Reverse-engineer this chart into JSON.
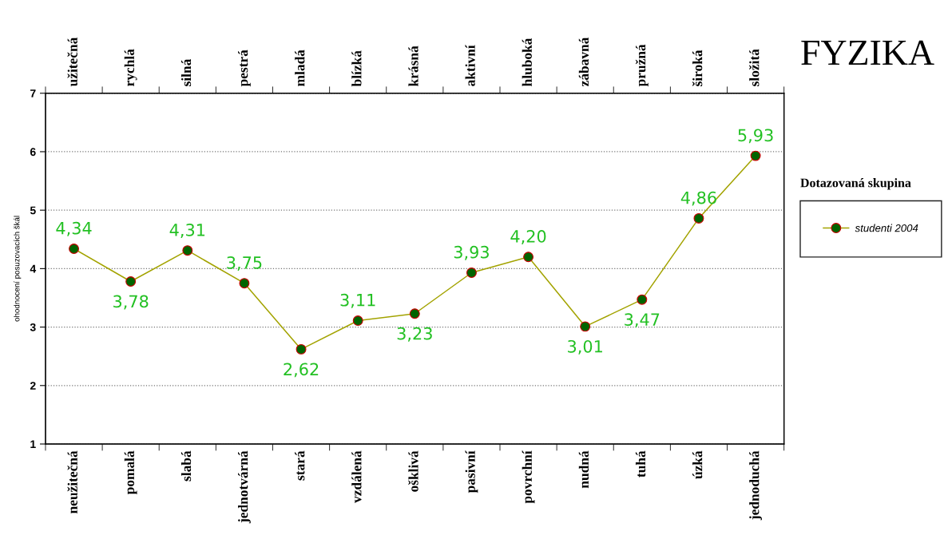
{
  "chart_data": {
    "type": "line",
    "title": "FYZIKA",
    "ylabel": "ohodnocení posuzovacích škál",
    "legend_title": "Dotazovaná skupina",
    "categories": [
      "neužitečná",
      "pomalá",
      "slabá",
      "jednotvárná",
      "stará",
      "vzdálená",
      "ošklivá",
      "pasivní",
      "povrchní",
      "nudná",
      "tuhá",
      "úzká",
      "jednoduchá"
    ],
    "annotations": [
      "užitečná",
      "rychlá",
      "silná",
      "pestrá",
      "mladá",
      "blízká",
      "krásná",
      "aktivní",
      "hluboká",
      "zábavná",
      "pružná",
      "široká",
      "složitá"
    ],
    "series": [
      {
        "name": "studenti 2004",
        "color": "#a3a300",
        "values": [
          4.34,
          3.78,
          4.31,
          3.75,
          2.62,
          3.11,
          3.23,
          3.93,
          4.2,
          3.01,
          3.47,
          4.86,
          5.93
        ],
        "value_labels": [
          "4,34",
          "3,78",
          "4,31",
          "3,75",
          "2,62",
          "3,11",
          "3,23",
          "3,93",
          "4,20",
          "3,01",
          "3,47",
          "4,86",
          "5,93"
        ]
      }
    ],
    "ylim": [
      1,
      7
    ],
    "yticks": [
      1,
      2,
      3,
      4,
      5,
      6,
      7
    ],
    "grid": "y",
    "legend": "right",
    "marker": "circle",
    "line_style": "solid"
  }
}
